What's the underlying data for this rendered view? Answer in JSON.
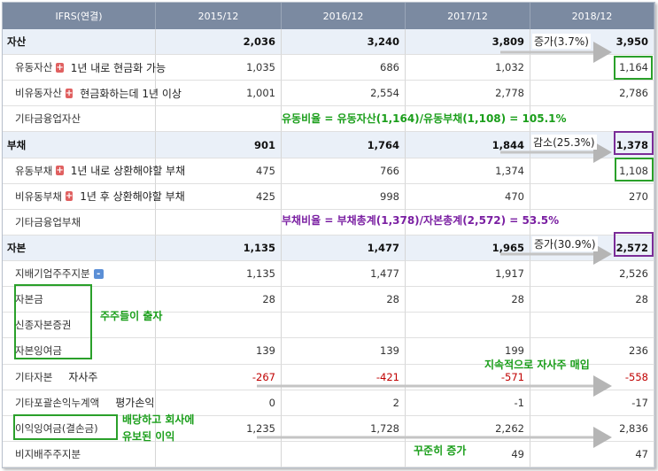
{
  "header": {
    "columns": [
      "IFRS(연결)",
      "2015/12",
      "2016/12",
      "2017/12",
      "2018/12"
    ]
  },
  "rows": [
    {
      "label": "자산",
      "bold": true,
      "values": [
        "2,036",
        "3,240",
        "3,809",
        "3,950"
      ]
    },
    {
      "label": "유동자산",
      "toggle": "+",
      "note": "1년 내로 현금화 가능",
      "values": [
        "1,035",
        "686",
        "1,032",
        "1,164"
      ]
    },
    {
      "label": "비유동자산",
      "toggle": "+",
      "note": "현금화하는데 1년 이상",
      "values": [
        "1,001",
        "2,554",
        "2,778",
        "2,786"
      ]
    },
    {
      "label": "기타금융업자산"
    },
    {
      "label": "부채",
      "bold": true,
      "values": [
        "901",
        "1,764",
        "1,844",
        "1,378"
      ]
    },
    {
      "label": "유동부채",
      "toggle": "+",
      "note": "1년 내로 상환해야할 부채",
      "values": [
        "475",
        "766",
        "1,374",
        "1,108"
      ]
    },
    {
      "label": "비유동부채",
      "toggle": "+",
      "note": "1년 후 상환해야할 부채",
      "values": [
        "425",
        "998",
        "470",
        "270"
      ]
    },
    {
      "label": "기타금융업부채"
    },
    {
      "label": "자본",
      "bold": true,
      "values": [
        "1,135",
        "1,477",
        "1,965",
        "2,572"
      ]
    },
    {
      "label": "지배기업주주지분",
      "toggle": "-",
      "values": [
        "1,135",
        "1,477",
        "1,917",
        "2,526"
      ]
    },
    {
      "label": "자본금",
      "values": [
        "28",
        "28",
        "28",
        "28"
      ]
    },
    {
      "label": "신종자본증권"
    },
    {
      "label": "자본잉여금",
      "values": [
        "139",
        "139",
        "199",
        "236"
      ]
    },
    {
      "label": "기타자본",
      "note": "자사주",
      "value_color": "#c00000",
      "values": [
        "-267",
        "-421",
        "-571",
        "-558"
      ]
    },
    {
      "label": "기타포괄손익누계액",
      "note": "평가손익",
      "values": [
        "0",
        "2",
        "-1",
        "-17"
      ]
    },
    {
      "label": "이익잉여금(결손금)",
      "values": [
        "1,235",
        "1,728",
        "2,262",
        "2,836"
      ]
    },
    {
      "label": "비지배주주지분",
      "values": [
        null,
        null,
        "49",
        "47"
      ]
    }
  ],
  "annotations": {
    "asset_change": "증가(3.7%)",
    "liability_change": "감소(25.3%)",
    "equity_change": "증가(30.9%)",
    "current_ratio": "유동비율 = 유동자산(1,164)/유동부채(1,108) = 105.1%",
    "debt_ratio": "부채비율 = 부채총계(1,378)/자본총계(2,572) = 53.5%",
    "paid_in": "주주들이 출자",
    "treasury": "지속적으로 자사주 매입",
    "retained": [
      "배당하고 회사에",
      "유보된 이익"
    ],
    "steady": "꾸준히 증가"
  }
}
